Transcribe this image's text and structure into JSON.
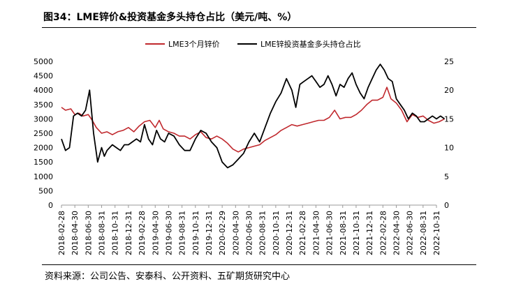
{
  "figure": {
    "title": "图34：LME锌价&投资基金多头持仓占比（美元/吨、%）",
    "source": "资料来源：公司公告、安泰科、公开资料、五矿期货研究中心"
  },
  "chart_data": {
    "type": "line",
    "title": "图34：LME锌价&投资基金多头持仓占比（美元/吨、%）",
    "xlabel": "",
    "ylabel": "",
    "legend_position": "top",
    "grid": false,
    "left_axis": {
      "range": [
        0,
        5000
      ],
      "ticks": [
        0,
        500,
        1000,
        1500,
        2000,
        2500,
        3000,
        3500,
        4000,
        4500,
        5000
      ]
    },
    "right_axis": {
      "range": [
        0,
        25
      ],
      "ticks": [
        0,
        5,
        10,
        15,
        20,
        25
      ]
    },
    "x_tick_labels": [
      "2018-02-28",
      "2018-04-30",
      "2018-06-30",
      "2018-08-31",
      "2018-10-31",
      "2018-12-31",
      "2019-02-28",
      "2019-04-30",
      "2019-06-30",
      "2019-08-31",
      "2019-10-31",
      "2019-12-31",
      "2020-02-29",
      "2020-04-30",
      "2020-06-30",
      "2020-08-31",
      "2020-10-31",
      "2020-12-31",
      "2021-02-28",
      "2021-04-30",
      "2021-06-30",
      "2021-08-31",
      "2021-10-31",
      "2021-12-31",
      "2022-02-28",
      "2022-04-30",
      "2022-06-30",
      "2022-08-31",
      "2022-10-31"
    ],
    "series": [
      {
        "name": "LME3个月锌价",
        "axis": "left",
        "color": "#c0282d",
        "x": [
          0,
          0.3,
          0.7,
          1.0,
          1.3,
          1.6,
          2.0,
          2.3,
          2.6,
          3.0,
          3.4,
          3.8,
          4.2,
          4.6,
          5.0,
          5.4,
          5.8,
          6.2,
          6.6,
          7.0,
          7.3,
          7.6,
          8.0,
          8.4,
          8.8,
          9.2,
          9.6,
          10.0,
          10.4,
          10.8,
          11.2,
          11.6,
          12.0,
          12.4,
          12.8,
          13.2,
          13.6,
          14.0,
          14.4,
          14.8,
          15.2,
          15.6,
          16.0,
          16.4,
          16.8,
          17.2,
          17.6,
          18.0,
          18.4,
          18.8,
          19.2,
          19.6,
          20.0,
          20.4,
          20.8,
          21.2,
          21.6,
          22.0,
          22.4,
          22.8,
          23.2,
          23.6,
          24.0,
          24.3,
          24.6,
          25.0,
          25.4,
          25.8,
          26.2,
          26.6,
          27.0,
          27.4,
          27.8,
          28.2,
          28.6
        ],
        "values": [
          3400,
          3300,
          3350,
          3150,
          3200,
          3100,
          3150,
          2950,
          2700,
          2500,
          2550,
          2450,
          2550,
          2600,
          2700,
          2550,
          2750,
          2900,
          2950,
          2700,
          2950,
          2650,
          2550,
          2500,
          2400,
          2400,
          2300,
          2450,
          2550,
          2350,
          2300,
          2400,
          2300,
          2150,
          1950,
          1850,
          1950,
          2000,
          2050,
          2100,
          2250,
          2350,
          2450,
          2600,
          2700,
          2800,
          2750,
          2800,
          2850,
          2900,
          2950,
          2950,
          3050,
          3300,
          3000,
          3050,
          3050,
          3150,
          3300,
          3500,
          3650,
          3650,
          3750,
          4100,
          3700,
          3550,
          3300,
          2900,
          3150,
          3050,
          3100,
          2950,
          2850,
          2900,
          3000
        ]
      },
      {
        "name": "LME锌投资基金多头持仓占比",
        "axis": "right",
        "color": "#000000",
        "x": [
          0,
          0.3,
          0.6,
          0.9,
          1.2,
          1.5,
          1.8,
          2.1,
          2.4,
          2.7,
          3.0,
          3.2,
          3.4,
          3.6,
          3.8,
          4.1,
          4.4,
          4.7,
          5.0,
          5.3,
          5.6,
          5.9,
          6.2,
          6.5,
          6.8,
          7.1,
          7.4,
          7.7,
          8.0,
          8.4,
          8.8,
          9.2,
          9.6,
          10.0,
          10.4,
          10.8,
          11.2,
          11.6,
          12.0,
          12.4,
          12.8,
          13.2,
          13.6,
          14.0,
          14.4,
          14.8,
          15.2,
          15.6,
          16.0,
          16.4,
          16.8,
          17.2,
          17.5,
          17.8,
          18.1,
          18.4,
          18.7,
          19.0,
          19.3,
          19.6,
          19.9,
          20.2,
          20.5,
          20.8,
          21.1,
          21.4,
          21.7,
          22.0,
          22.3,
          22.6,
          22.9,
          23.2,
          23.5,
          23.8,
          24.1,
          24.4,
          24.7,
          25.0,
          25.3,
          25.6,
          25.9,
          26.2,
          26.5,
          26.8,
          27.1,
          27.4,
          27.7,
          28.0,
          28.3,
          28.6
        ],
        "values": [
          11.5,
          9.5,
          10.0,
          15.5,
          16.0,
          15.5,
          16.5,
          20.0,
          12.5,
          7.5,
          10.0,
          8.5,
          9.5,
          10.0,
          10.5,
          10.0,
          9.5,
          10.5,
          10.5,
          11.0,
          11.5,
          11.0,
          14.0,
          11.5,
          10.5,
          13.0,
          11.5,
          11.0,
          12.5,
          12.0,
          10.5,
          9.5,
          9.5,
          11.5,
          13.0,
          12.5,
          11.0,
          10.0,
          7.5,
          6.5,
          7.0,
          8.0,
          9.0,
          11.0,
          12.5,
          11.0,
          13.5,
          16.0,
          18.0,
          19.5,
          22.0,
          20.0,
          17.0,
          21.0,
          21.5,
          22.0,
          22.5,
          21.5,
          20.5,
          21.0,
          22.5,
          21.0,
          19.0,
          21.0,
          20.5,
          22.0,
          23.0,
          21.0,
          19.5,
          18.5,
          20.5,
          22.0,
          23.5,
          24.5,
          23.5,
          22.0,
          21.5,
          18.5,
          17.5,
          16.5,
          15.0,
          16.0,
          15.5,
          14.5,
          14.5,
          15.0,
          15.5,
          15.0,
          15.5,
          15.0
        ]
      }
    ]
  }
}
